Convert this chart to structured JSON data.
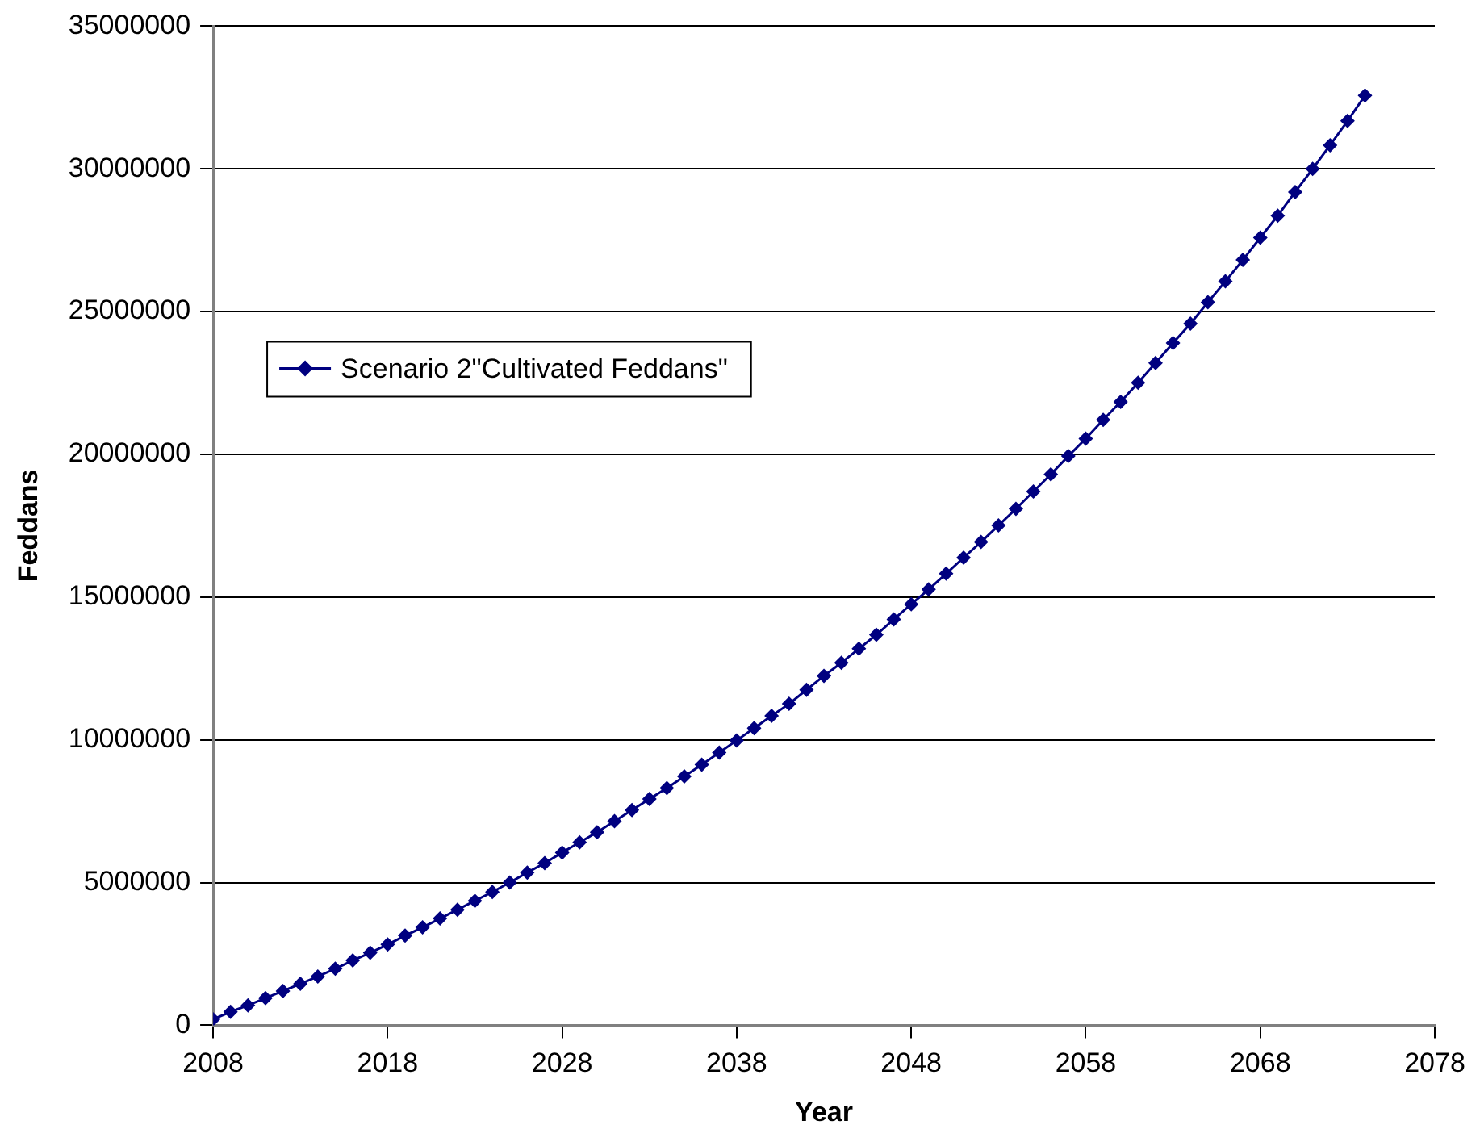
{
  "chart_data": {
    "type": "line",
    "xlabel": "Year",
    "ylabel": "Feddans",
    "x": [
      2008,
      2009,
      2010,
      2011,
      2012,
      2013,
      2014,
      2015,
      2016,
      2017,
      2018,
      2019,
      2020,
      2021,
      2022,
      2023,
      2024,
      2025,
      2026,
      2027,
      2028,
      2029,
      2030,
      2031,
      2032,
      2033,
      2034,
      2035,
      2036,
      2037,
      2038,
      2039,
      2040,
      2041,
      2042,
      2043,
      2044,
      2045,
      2046,
      2047,
      2048,
      2049,
      2050,
      2051,
      2052,
      2053,
      2054,
      2055,
      2056,
      2057,
      2058,
      2059,
      2060,
      2061,
      2062,
      2063,
      2064,
      2065,
      2066,
      2067,
      2068,
      2069,
      2070,
      2071,
      2072,
      2073,
      2074
    ],
    "series": [
      {
        "name": "Scenario 2\"Cultivated Feddans\"",
        "color": "#000080",
        "values": [
          210000,
          470000,
          700000,
          950000,
          1200000,
          1450000,
          1710000,
          1980000,
          2270000,
          2540000,
          2830000,
          3140000,
          3430000,
          3740000,
          4050000,
          4360000,
          4670000,
          5000000,
          5350000,
          5680000,
          6050000,
          6410000,
          6760000,
          7150000,
          7540000,
          7930000,
          8310000,
          8720000,
          9130000,
          9550000,
          9980000,
          10410000,
          10840000,
          11260000,
          11750000,
          12240000,
          12700000,
          13190000,
          13680000,
          14220000,
          14750000,
          15270000,
          15820000,
          16380000,
          16930000,
          17510000,
          18090000,
          18700000,
          19300000,
          19940000,
          20550000,
          21210000,
          21840000,
          22510000,
          23200000,
          23900000,
          24580000,
          25330000,
          26060000,
          26810000,
          27590000,
          28360000,
          29190000,
          30000000,
          30830000,
          31680000,
          32570000
        ]
      }
    ],
    "xlim": [
      2008,
      2078
    ],
    "xticks": [
      2008,
      2018,
      2028,
      2038,
      2048,
      2058,
      2068,
      2078
    ],
    "ylim": [
      0,
      35000000
    ],
    "yticks": [
      0,
      5000000,
      10000000,
      15000000,
      20000000,
      25000000,
      30000000,
      35000000
    ],
    "grid": "y",
    "legend": "top left",
    "marker": "diamond",
    "line_style": "solid"
  }
}
